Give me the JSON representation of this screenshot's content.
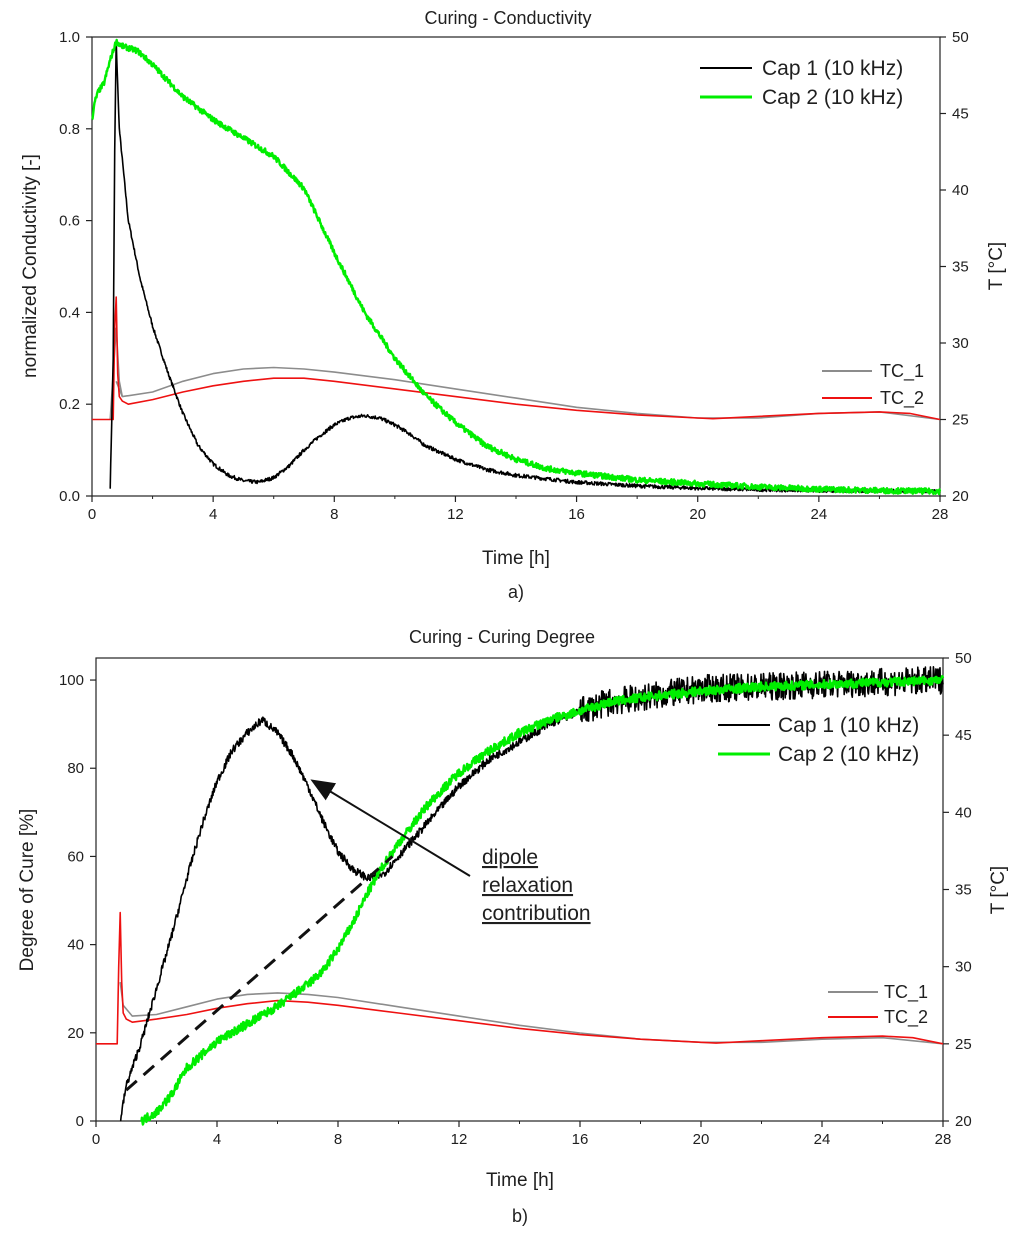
{
  "chart_data": [
    {
      "type": "line",
      "title": "Curing - Conductivity",
      "xlabel": "Time [h]",
      "ylabel": "normalized Conductivity [-]",
      "y2label": "T [°C]",
      "caption": "a)",
      "xlim": [
        0,
        28
      ],
      "ylim": [
        0,
        1.0
      ],
      "y2lim": [
        20,
        50
      ],
      "xticks": [
        0,
        4,
        8,
        12,
        16,
        20,
        24,
        28
      ],
      "yticks": [
        0.0,
        0.2,
        0.4,
        0.6,
        0.8,
        1.0
      ],
      "ytick_labels": [
        "0.0",
        "0.2",
        "0.4",
        "0.6",
        "0.8",
        "1.0"
      ],
      "y2ticks": [
        20,
        25,
        30,
        35,
        40,
        45,
        50
      ],
      "legend_primary": [
        "Cap 1 (10 kHz)",
        "Cap 2 (10 kHz)"
      ],
      "legend_secondary": [
        "TC_1",
        "TC_2"
      ],
      "series": [
        {
          "name": "Cap 1 (10 kHz)",
          "axis": "left",
          "color": "#000000",
          "noise": 0.004,
          "x": [
            0.6,
            0.7,
            0.75,
            0.8,
            0.9,
            1.2,
            1.6,
            2,
            2.5,
            3,
            3.5,
            4,
            4.5,
            5,
            5.5,
            6,
            6.5,
            7,
            7.5,
            8,
            8.5,
            9,
            9.5,
            10,
            10.5,
            11,
            12,
            13,
            14,
            16,
            18,
            20,
            22,
            24,
            26,
            28
          ],
          "values": [
            0.02,
            0.3,
            0.75,
            0.99,
            0.8,
            0.6,
            0.47,
            0.37,
            0.27,
            0.18,
            0.11,
            0.07,
            0.045,
            0.033,
            0.03,
            0.04,
            0.065,
            0.1,
            0.13,
            0.155,
            0.17,
            0.175,
            0.17,
            0.155,
            0.135,
            0.11,
            0.08,
            0.058,
            0.045,
            0.03,
            0.022,
            0.017,
            0.014,
            0.012,
            0.011,
            0.01
          ]
        },
        {
          "name": "Cap 2 (10 kHz)",
          "axis": "left",
          "color": "#00ee00",
          "noise": 0.006,
          "x": [
            0,
            0.1,
            0.2,
            0.4,
            0.6,
            0.8,
            1,
            1.5,
            2,
            3,
            4,
            5,
            6,
            7,
            8,
            9,
            10,
            11,
            12,
            13,
            14,
            15,
            16,
            18,
            20,
            22,
            24,
            26,
            28
          ],
          "values": [
            0.82,
            0.86,
            0.88,
            0.9,
            0.95,
            0.99,
            0.98,
            0.97,
            0.94,
            0.87,
            0.82,
            0.78,
            0.74,
            0.67,
            0.53,
            0.4,
            0.3,
            0.22,
            0.16,
            0.11,
            0.08,
            0.06,
            0.05,
            0.035,
            0.027,
            0.02,
            0.015,
            0.012,
            0.01
          ]
        },
        {
          "name": "TC_1",
          "axis": "right",
          "color": "#8c8c8c",
          "noise": 0,
          "x": [
            0.8,
            1,
            2,
            3,
            4,
            5,
            6,
            7,
            8,
            10,
            12,
            14,
            16,
            18,
            20,
            22,
            24,
            26,
            28
          ],
          "values": [
            27.5,
            26.5,
            26.8,
            27.5,
            28,
            28.3,
            28.4,
            28.3,
            28.1,
            27.6,
            27,
            26.4,
            25.8,
            25.4,
            25.1,
            25.1,
            25.4,
            25.5,
            25
          ],
          "spike": {
            "x": [
              0.6,
              0.8,
              0.9,
              1.0
            ],
            "values": [
              25,
              31,
              27.5,
              26.5
            ]
          }
        },
        {
          "name": "TC_2",
          "axis": "right",
          "color": "#ee1111",
          "noise": 0,
          "x": [
            0,
            0.5,
            0.7,
            0.75,
            0.8,
            0.85,
            0.9,
            1,
            1.2,
            2,
            3,
            4,
            5,
            6,
            7,
            8,
            10,
            12,
            14,
            16,
            18,
            20,
            20.5,
            22,
            24,
            26,
            27,
            28
          ],
          "values": [
            25,
            25,
            25,
            31,
            33,
            28,
            26.5,
            26.2,
            26,
            26.3,
            26.8,
            27.2,
            27.5,
            27.7,
            27.7,
            27.5,
            27,
            26.5,
            26,
            25.6,
            25.3,
            25.1,
            25.05,
            25.2,
            25.4,
            25.5,
            25.4,
            25
          ]
        }
      ]
    },
    {
      "type": "line",
      "title": "Curing - Curing Degree",
      "xlabel": "Time [h]",
      "ylabel": "Degree of Cure [%]",
      "y2label": "T [°C]",
      "caption": "b)",
      "xlim": [
        0,
        28
      ],
      "ylim": [
        0,
        105
      ],
      "y2lim": [
        20,
        50
      ],
      "xticks": [
        0,
        4,
        8,
        12,
        16,
        20,
        24,
        28
      ],
      "yticks": [
        0,
        20,
        40,
        60,
        80,
        100
      ],
      "ytick_labels": [
        "0",
        "20",
        "40",
        "60",
        "80",
        "100"
      ],
      "y2ticks": [
        20,
        25,
        30,
        35,
        40,
        45,
        50
      ],
      "legend_primary": [
        "Cap 1 (10 kHz)",
        "Cap 2 (10 kHz)"
      ],
      "legend_secondary": [
        "TC_1",
        "TC_2"
      ],
      "annotation": {
        "lines": [
          "dipole",
          "relaxation",
          "contribution"
        ],
        "arrow_to": [
          7.2,
          77
        ]
      },
      "dashed_line": {
        "x": [
          1.0,
          9.8
        ],
        "y": [
          7,
          60
        ]
      },
      "series": [
        {
          "name": "Cap 1 (10 kHz)",
          "axis": "left",
          "color": "#000000",
          "noise": 0.9,
          "x": [
            0.8,
            1,
            1.5,
            2,
            2.5,
            3,
            3.5,
            4,
            4.5,
            5,
            5.5,
            6,
            6.5,
            7,
            7.5,
            8,
            8.5,
            9,
            9.5,
            10,
            11,
            12,
            13,
            14,
            15,
            16,
            17,
            18,
            19,
            20,
            22,
            24,
            26,
            28
          ],
          "values": [
            0,
            8,
            18,
            30,
            42,
            55,
            67,
            77,
            84,
            88,
            91,
            88,
            83,
            76,
            68,
            61,
            57,
            55,
            56,
            60,
            68,
            76,
            82,
            86,
            90,
            93,
            95,
            96,
            97,
            98,
            98.5,
            99,
            99.5,
            100
          ]
        },
        {
          "name": "Cap 2 (10 kHz)",
          "axis": "left",
          "color": "#00ee00",
          "noise": 1.0,
          "x": [
            1.5,
            2,
            2.5,
            3,
            4,
            5,
            6,
            7,
            7.5,
            8,
            8.5,
            9,
            9.5,
            10,
            11,
            12,
            13,
            14,
            15,
            16,
            17,
            18,
            20,
            22,
            24,
            26,
            28
          ],
          "values": [
            0,
            2,
            6,
            12,
            18,
            22,
            26,
            31,
            34,
            39,
            45,
            52,
            58,
            63,
            72,
            79,
            84,
            88,
            91,
            93,
            95,
            96,
            97.5,
            98.5,
            99,
            99.5,
            100
          ]
        },
        {
          "name": "TC_1",
          "axis": "right",
          "color": "#8c8c8c",
          "noise": 0,
          "x": [
            0.8,
            0.9,
            1.2,
            2,
            3,
            4,
            5,
            6,
            7,
            8,
            10,
            12,
            14,
            16,
            18,
            20,
            22,
            24,
            26,
            28
          ],
          "values": [
            29,
            27.5,
            26.8,
            26.9,
            27.4,
            27.9,
            28.2,
            28.3,
            28.2,
            28,
            27.4,
            26.8,
            26.2,
            25.7,
            25.3,
            25.1,
            25.1,
            25.3,
            25.4,
            25
          ]
        },
        {
          "name": "TC_2",
          "axis": "right",
          "color": "#ee1111",
          "noise": 0,
          "x": [
            0,
            0.5,
            0.7,
            0.75,
            0.8,
            0.85,
            0.9,
            1,
            1.2,
            2,
            3,
            4,
            5,
            6,
            7,
            8,
            10,
            12,
            14,
            16,
            18,
            20,
            20.5,
            22,
            24,
            26,
            27,
            28
          ],
          "values": [
            25,
            25,
            25,
            30,
            33.5,
            29,
            27,
            26.6,
            26.4,
            26.6,
            26.9,
            27.3,
            27.6,
            27.8,
            27.7,
            27.5,
            27,
            26.5,
            26,
            25.6,
            25.3,
            25.1,
            25.05,
            25.2,
            25.4,
            25.5,
            25.4,
            25
          ]
        }
      ]
    }
  ]
}
